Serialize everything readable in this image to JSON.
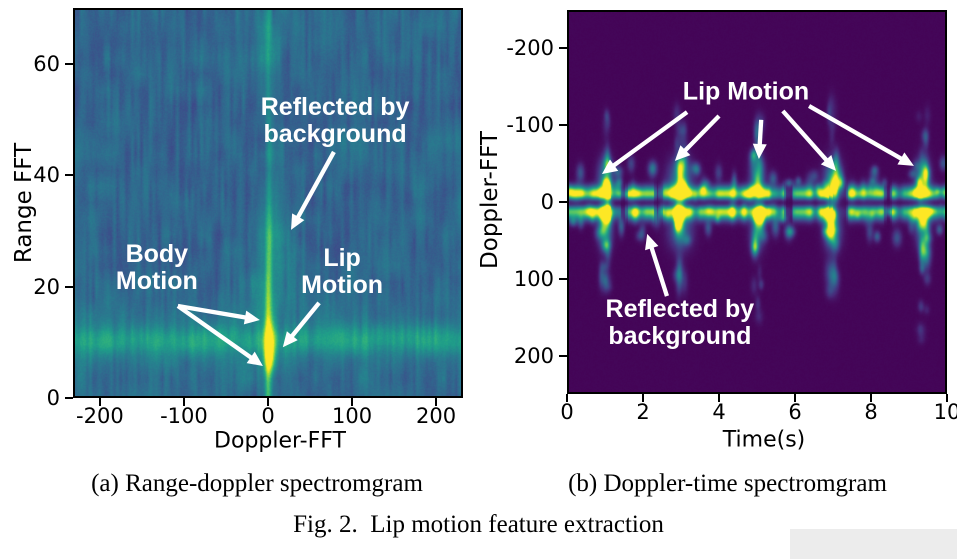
{
  "captions": {
    "a": "(a) Range-doppler spectromgram",
    "b": "(b) Doppler-time spectromgram",
    "fig": "Fig. 2.  Lip motion feature extraction"
  },
  "colors": {
    "annotation_text": "#ffffff",
    "arrow": "#ffffff",
    "axis_text": "#000000",
    "heatmap_background_left": "#39568c",
    "heatmap_background_right": "#440154",
    "band_green": "#35b779",
    "peak_yellow": "#fde725",
    "highlight_box": "#ececec",
    "colormap": "viridis"
  },
  "chart_data": [
    {
      "id": "range_doppler",
      "type": "heatmap",
      "panel_label": "(a)",
      "xlabel": "Doppler-FFT",
      "ylabel": "Range FFT",
      "xlim": [
        -232,
        232
      ],
      "ylim": [
        0,
        70
      ],
      "xticks": [
        -200,
        -100,
        0,
        100,
        200
      ],
      "yticks": [
        0,
        20,
        40,
        60
      ],
      "colormap": "viridis",
      "content": {
        "background_level": 0.33,
        "body_motion_band": {
          "range": 10,
          "spans_all_doppler": true
        },
        "lip_motion_peak": {
          "doppler": 0,
          "range": 9
        },
        "center_streak_doppler": 0,
        "background_reflection_blob": {
          "doppler": 2,
          "range": 27
        }
      },
      "annotations": [
        {
          "name": "reflected-by-background",
          "lines": [
            "Reflected by",
            "background"
          ],
          "cx": 0.672,
          "cy": 0.29,
          "arrows": [
            [
              0.669,
              0.369,
              0.559,
              0.569
            ]
          ]
        },
        {
          "name": "body-motion",
          "lines": [
            "Body",
            "Motion"
          ],
          "cx": 0.215,
          "cy": 0.667,
          "arrows": [
            [
              0.269,
              0.764,
              0.479,
              0.8
            ],
            [
              0.269,
              0.764,
              0.487,
              0.918
            ]
          ]
        },
        {
          "name": "lip-motion",
          "lines": [
            "Lip",
            "Motion"
          ],
          "cx": 0.69,
          "cy": 0.677,
          "arrows": [
            [
              0.631,
              0.756,
              0.538,
              0.87
            ]
          ]
        }
      ],
      "render": {
        "seed": 7
      }
    },
    {
      "id": "doppler_time",
      "type": "heatmap",
      "panel_label": "(b)",
      "xlabel": "Time(s)",
      "ylabel": "Doppler-FFT",
      "xlim": [
        0,
        10
      ],
      "ylim": [
        -250,
        250
      ],
      "y_inverted": true,
      "xticks": [
        0,
        2,
        4,
        6,
        8,
        10
      ],
      "yticks": [
        -200,
        -100,
        0,
        100,
        200
      ],
      "colormap": "viridis",
      "content": {
        "background_band_dopplers": [
          -11,
          14
        ],
        "bursts": [
          {
            "t": 0.95,
            "up": 80,
            "down": 75,
            "w": 5
          },
          {
            "t": 2.95,
            "up": 85,
            "down": 85,
            "w": 8
          },
          {
            "t": 5.0,
            "up": 80,
            "down": 105,
            "w": 5
          },
          {
            "t": 7.0,
            "up": 95,
            "down": 80,
            "w": 6
          },
          {
            "t": 9.4,
            "up": 90,
            "down": 130,
            "w": 5
          }
        ]
      },
      "annotations": [
        {
          "name": "lip-motion",
          "lines": [
            "Lip Motion"
          ],
          "cx": 0.471,
          "cy": 0.214,
          "arrows": [
            [
              0.316,
              0.266,
              0.092,
              0.427
            ],
            [
              0.4,
              0.276,
              0.284,
              0.393
            ],
            [
              0.511,
              0.286,
              0.505,
              0.388
            ],
            [
              0.568,
              0.263,
              0.708,
              0.419
            ],
            [
              0.637,
              0.25,
              0.913,
              0.406
            ]
          ]
        },
        {
          "name": "reflected-by-background",
          "lines": [
            "Reflected by",
            "background"
          ],
          "cx": 0.297,
          "cy": 0.816,
          "arrows": [
            [
              0.263,
              0.745,
              0.211,
              0.583
            ]
          ]
        }
      ],
      "render": {
        "seed": 11
      }
    }
  ]
}
